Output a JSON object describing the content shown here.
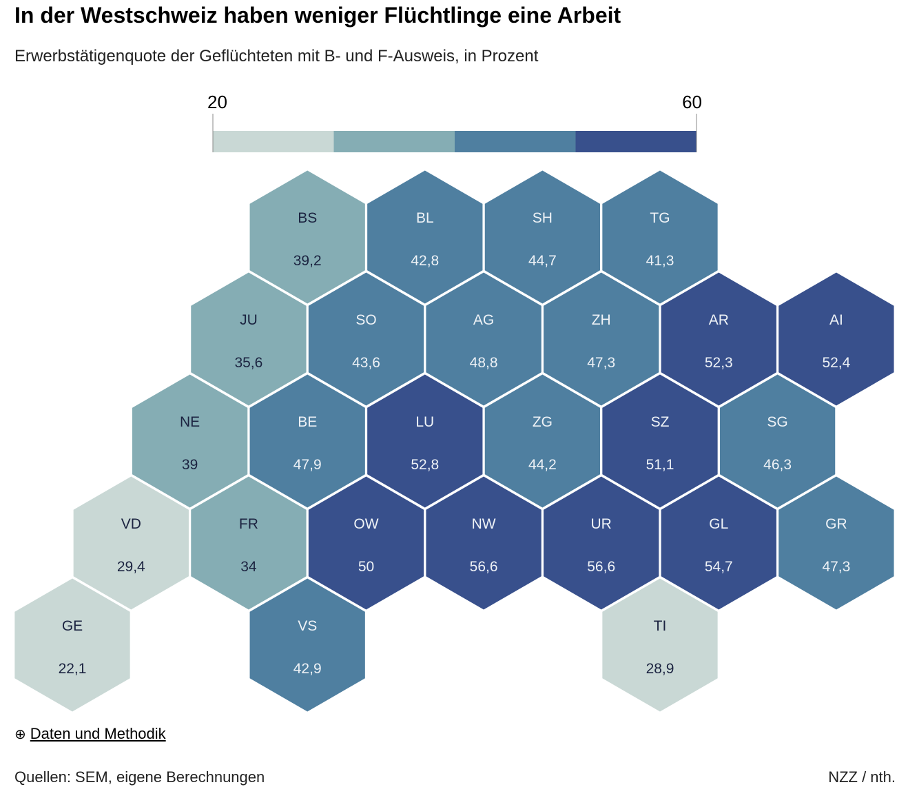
{
  "chart_data": {
    "type": "hex-tile-map",
    "title": "In der Westschweiz haben weniger Flüchtlinge eine Arbeit",
    "subtitle": "Erwerbstätigenquote der Geflüchteten mit B- und F-Ausweis, in Prozent",
    "legend": {
      "min_label": "20",
      "max_label": "60",
      "bins": [
        {
          "from": 20,
          "to": 30,
          "color": "#c9d8d5"
        },
        {
          "from": 30,
          "to": 40,
          "color": "#85adb4"
        },
        {
          "from": 40,
          "to": 50,
          "color": "#4f7fa0"
        },
        {
          "from": 50,
          "to": 60,
          "color": "#38508c"
        }
      ]
    },
    "cantons": [
      {
        "code": "BS",
        "label": "39,2",
        "value": 39.2
      },
      {
        "code": "BL",
        "label": "42,8",
        "value": 42.8
      },
      {
        "code": "SH",
        "label": "44,7",
        "value": 44.7
      },
      {
        "code": "TG",
        "label": "41,3",
        "value": 41.3
      },
      {
        "code": "JU",
        "label": "35,6",
        "value": 35.6
      },
      {
        "code": "SO",
        "label": "43,6",
        "value": 43.6
      },
      {
        "code": "AG",
        "label": "48,8",
        "value": 48.8
      },
      {
        "code": "ZH",
        "label": "47,3",
        "value": 47.3
      },
      {
        "code": "AR",
        "label": "52,3",
        "value": 52.3
      },
      {
        "code": "AI",
        "label": "52,4",
        "value": 52.4
      },
      {
        "code": "NE",
        "label": "39",
        "value": 39
      },
      {
        "code": "BE",
        "label": "47,9",
        "value": 47.9
      },
      {
        "code": "LU",
        "label": "52,8",
        "value": 52.8
      },
      {
        "code": "ZG",
        "label": "44,2",
        "value": 44.2
      },
      {
        "code": "SZ",
        "label": "51,1",
        "value": 51.1
      },
      {
        "code": "SG",
        "label": "46,3",
        "value": 46.3
      },
      {
        "code": "VD",
        "label": "29,4",
        "value": 29.4
      },
      {
        "code": "FR",
        "label": "34",
        "value": 34
      },
      {
        "code": "OW",
        "label": "50",
        "value": 50
      },
      {
        "code": "NW",
        "label": "56,6",
        "value": 56.6
      },
      {
        "code": "UR",
        "label": "56,6",
        "value": 56.6
      },
      {
        "code": "GL",
        "label": "54,7",
        "value": 54.7
      },
      {
        "code": "GR",
        "label": "47,3",
        "value": 47.3
      },
      {
        "code": "GE",
        "label": "22,1",
        "value": 22.1
      },
      {
        "code": "VS",
        "label": "42,9",
        "value": 42.9
      },
      {
        "code": "TI",
        "label": "28,9",
        "value": 28.9
      }
    ]
  },
  "footer": {
    "methods_link": "Daten und Methodik",
    "methods_icon": "plus-circle-icon",
    "source": "Quellen: SEM, eigene Berechnungen",
    "credit": "NZZ / nth."
  }
}
